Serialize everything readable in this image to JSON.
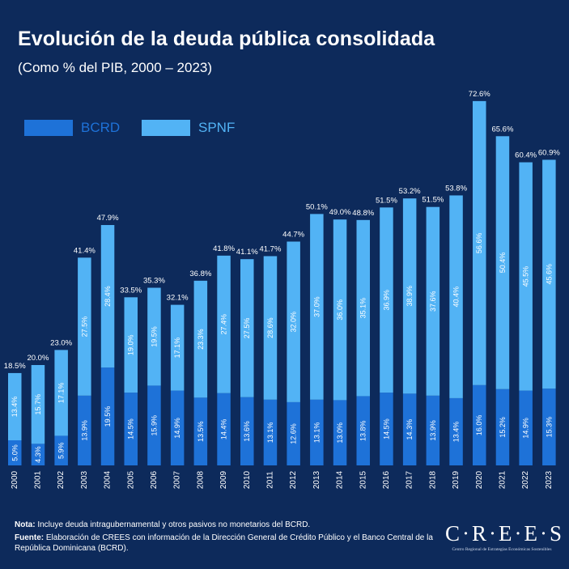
{
  "header": {
    "title": "Evolución de la deuda pública consolidada",
    "subtitle": "(Como % del PIB, 2000 – 2023)"
  },
  "legend": {
    "bcrd": "BCRD",
    "spnf": "SPNF"
  },
  "colors": {
    "background": "#0d2a5b",
    "bcrd": "#1e72d8",
    "spnf": "#52b3f5",
    "text": "#ffffff"
  },
  "chart_data": {
    "type": "bar",
    "stacked": true,
    "title": "Evolución de la deuda pública consolidada",
    "subtitle": "(Como % del PIB, 2000 – 2023)",
    "categories": [
      "2000",
      "2001",
      "2002",
      "2003",
      "2004",
      "2005",
      "2006",
      "2007",
      "2008",
      "2009",
      "2010",
      "2011",
      "2012",
      "2013",
      "2014",
      "2015",
      "2016",
      "2017",
      "2018",
      "2019",
      "2020",
      "2021",
      "2022",
      "2023"
    ],
    "series": [
      {
        "name": "BCRD",
        "values": [
          5.0,
          4.3,
          5.9,
          13.9,
          19.5,
          14.5,
          15.9,
          14.9,
          13.5,
          14.4,
          13.6,
          13.1,
          12.6,
          13.1,
          13.0,
          13.8,
          14.5,
          14.3,
          13.9,
          13.4,
          16.0,
          15.2,
          14.9,
          15.3
        ]
      },
      {
        "name": "SPNF",
        "values": [
          13.4,
          15.7,
          17.1,
          27.5,
          28.4,
          19.0,
          19.5,
          17.1,
          23.3,
          27.4,
          27.5,
          28.6,
          32.0,
          37.0,
          36.0,
          35.1,
          36.9,
          38.9,
          37.6,
          40.4,
          56.6,
          50.4,
          45.5,
          45.6
        ]
      }
    ],
    "totals": [
      18.5,
      20.0,
      23.0,
      41.4,
      47.9,
      33.5,
      35.3,
      32.1,
      36.8,
      41.8,
      41.1,
      41.7,
      44.7,
      50.1,
      49.0,
      48.8,
      51.5,
      53.2,
      51.5,
      53.8,
      72.6,
      65.6,
      60.4,
      60.9
    ],
    "xlabel": "",
    "ylabel": "",
    "legend_position": "top-left",
    "grid": false,
    "unit": "%"
  },
  "footer": {
    "note_label": "Nota:",
    "note_text": " Incluye deuda intragubernamental y otros pasivos no monetarios del BCRD.",
    "source_label": "Fuente:",
    "source_text": " Elaboración de CREES con información de la Dirección General de Crédito Público y el Banco Central de la República Dominicana (BCRD)."
  },
  "logo": {
    "word": "C·R·E·E·S",
    "tagline": "Centro Regional de Estrategias Económicas Sostenibles"
  }
}
